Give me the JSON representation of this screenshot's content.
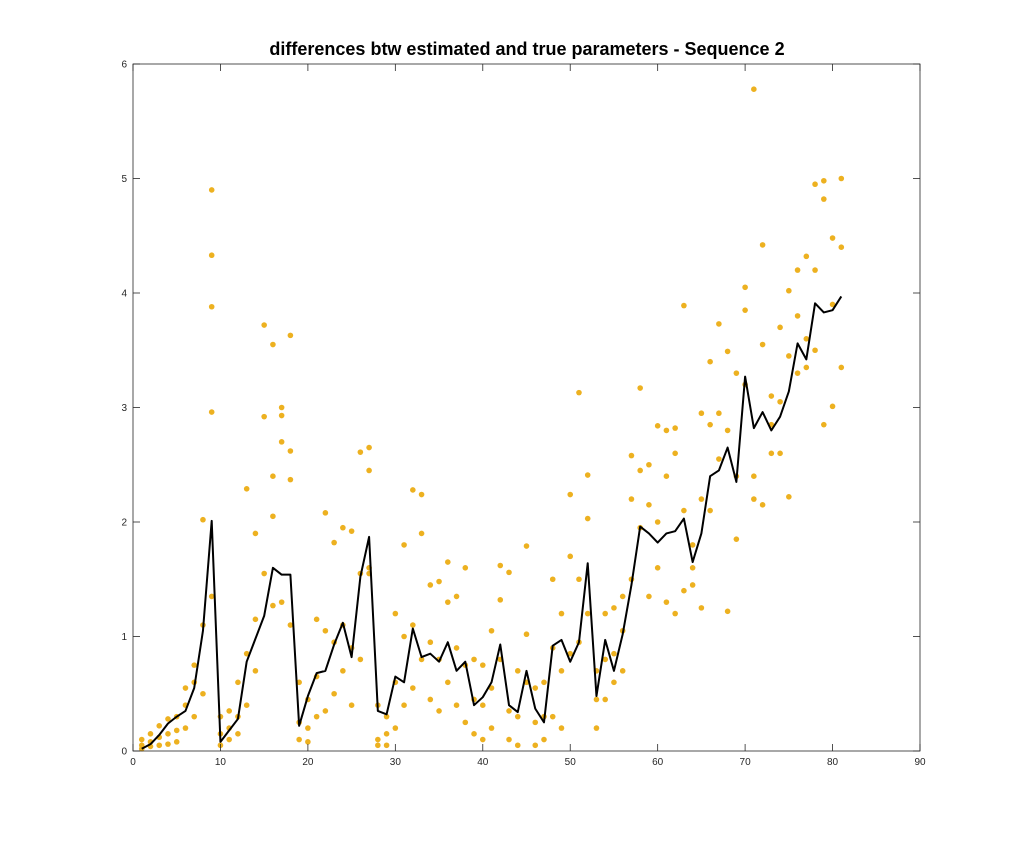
{
  "chart_data": {
    "type": "scatter",
    "title": "differences btw estimated and true parameters - Sequence 2",
    "xlabel": "",
    "ylabel": "",
    "xlim": [
      0,
      90
    ],
    "ylim": [
      0,
      6
    ],
    "xticks": [
      0,
      10,
      20,
      30,
      40,
      50,
      60,
      70,
      80,
      90
    ],
    "yticks": [
      0,
      1,
      2,
      3,
      4,
      5,
      6
    ],
    "grid": false,
    "box": true,
    "colors": {
      "scatter": "#EDB120",
      "line": "#000000",
      "axes": "#262626"
    },
    "series": [
      {
        "type": "scatter",
        "points": [
          [
            1,
            0.1
          ],
          [
            1,
            0.05
          ],
          [
            1,
            0.02
          ],
          [
            2,
            0.15
          ],
          [
            2,
            0.08
          ],
          [
            2,
            0.04
          ],
          [
            3,
            0.22
          ],
          [
            3,
            0.12
          ],
          [
            3,
            0.05
          ],
          [
            4,
            0.28
          ],
          [
            4,
            0.15
          ],
          [
            4,
            0.06
          ],
          [
            5,
            0.3
          ],
          [
            5,
            0.18
          ],
          [
            5,
            0.08
          ],
          [
            6,
            0.4
          ],
          [
            6,
            0.55
          ],
          [
            6,
            0.2
          ],
          [
            7,
            0.6
          ],
          [
            7,
            0.75
          ],
          [
            7,
            0.3
          ],
          [
            8,
            1.1
          ],
          [
            8,
            2.02
          ],
          [
            8,
            0.5
          ],
          [
            9,
            4.9
          ],
          [
            9,
            4.33
          ],
          [
            9,
            3.88
          ],
          [
            9,
            2.96
          ],
          [
            9,
            1.35
          ],
          [
            10,
            0.15
          ],
          [
            10,
            0.05
          ],
          [
            10,
            0.3
          ],
          [
            11,
            0.2
          ],
          [
            11,
            0.35
          ],
          [
            11,
            0.1
          ],
          [
            12,
            0.3
          ],
          [
            12,
            0.6
          ],
          [
            12,
            0.15
          ],
          [
            13,
            2.29
          ],
          [
            13,
            0.85
          ],
          [
            13,
            0.4
          ],
          [
            14,
            1.9
          ],
          [
            14,
            1.15
          ],
          [
            14,
            0.7
          ],
          [
            15,
            3.72
          ],
          [
            15,
            2.92
          ],
          [
            15,
            1.55
          ],
          [
            16,
            3.55
          ],
          [
            16,
            2.4
          ],
          [
            16,
            2.05
          ],
          [
            16,
            1.27
          ],
          [
            17,
            3.0
          ],
          [
            17,
            2.93
          ],
          [
            17,
            2.7
          ],
          [
            17,
            1.3
          ],
          [
            18,
            3.63
          ],
          [
            18,
            2.62
          ],
          [
            18,
            2.37
          ],
          [
            18,
            1.1
          ],
          [
            19,
            0.6
          ],
          [
            19,
            0.25
          ],
          [
            19,
            0.1
          ],
          [
            20,
            0.45
          ],
          [
            20,
            0.2
          ],
          [
            20,
            0.08
          ],
          [
            21,
            1.15
          ],
          [
            21,
            0.65
          ],
          [
            21,
            0.3
          ],
          [
            22,
            2.08
          ],
          [
            22,
            1.05
          ],
          [
            22,
            0.35
          ],
          [
            23,
            1.82
          ],
          [
            23,
            0.95
          ],
          [
            23,
            0.5
          ],
          [
            24,
            1.95
          ],
          [
            24,
            1.1
          ],
          [
            24,
            0.7
          ],
          [
            25,
            1.92
          ],
          [
            25,
            0.9
          ],
          [
            25,
            0.4
          ],
          [
            26,
            2.61
          ],
          [
            26,
            1.55
          ],
          [
            26,
            0.8
          ],
          [
            27,
            2.65
          ],
          [
            27,
            2.45
          ],
          [
            27,
            1.6
          ],
          [
            27,
            1.55
          ],
          [
            28,
            0.4
          ],
          [
            28,
            0.1
          ],
          [
            28,
            0.05
          ],
          [
            29,
            0.3
          ],
          [
            29,
            0.15
          ],
          [
            29,
            0.05
          ],
          [
            30,
            1.2
          ],
          [
            30,
            0.6
          ],
          [
            30,
            0.2
          ],
          [
            31,
            1.8
          ],
          [
            31,
            1.0
          ],
          [
            31,
            0.4
          ],
          [
            32,
            2.28
          ],
          [
            32,
            1.1
          ],
          [
            32,
            0.55
          ],
          [
            33,
            2.24
          ],
          [
            33,
            1.9
          ],
          [
            33,
            0.8
          ],
          [
            34,
            1.45
          ],
          [
            34,
            0.95
          ],
          [
            34,
            0.45
          ],
          [
            35,
            1.48
          ],
          [
            35,
            0.8
          ],
          [
            35,
            0.35
          ],
          [
            36,
            1.65
          ],
          [
            36,
            1.3
          ],
          [
            36,
            0.6
          ],
          [
            37,
            1.35
          ],
          [
            37,
            0.9
          ],
          [
            37,
            0.4
          ],
          [
            38,
            1.6
          ],
          [
            38,
            0.75
          ],
          [
            38,
            0.25
          ],
          [
            39,
            0.8
          ],
          [
            39,
            0.45
          ],
          [
            39,
            0.15
          ],
          [
            40,
            0.75
          ],
          [
            40,
            0.4
          ],
          [
            40,
            0.1
          ],
          [
            41,
            1.05
          ],
          [
            41,
            0.55
          ],
          [
            41,
            0.2
          ],
          [
            42,
            1.62
          ],
          [
            42,
            1.32
          ],
          [
            42,
            0.8
          ],
          [
            43,
            1.56
          ],
          [
            43,
            0.35
          ],
          [
            43,
            0.1
          ],
          [
            44,
            0.7
          ],
          [
            44,
            0.3
          ],
          [
            44,
            0.05
          ],
          [
            45,
            1.79
          ],
          [
            45,
            1.02
          ],
          [
            45,
            0.6
          ],
          [
            46,
            0.55
          ],
          [
            46,
            0.25
          ],
          [
            46,
            0.05
          ],
          [
            47,
            0.6
          ],
          [
            47,
            0.3
          ],
          [
            47,
            0.1
          ],
          [
            48,
            1.5
          ],
          [
            48,
            0.9
          ],
          [
            48,
            0.3
          ],
          [
            49,
            1.2
          ],
          [
            49,
            0.7
          ],
          [
            49,
            0.2
          ],
          [
            50,
            2.24
          ],
          [
            50,
            1.7
          ],
          [
            50,
            0.85
          ],
          [
            51,
            3.13
          ],
          [
            51,
            1.5
          ],
          [
            51,
            0.95
          ],
          [
            52,
            2.41
          ],
          [
            52,
            2.03
          ],
          [
            52,
            1.2
          ],
          [
            53,
            0.7
          ],
          [
            53,
            0.45
          ],
          [
            53,
            0.2
          ],
          [
            54,
            1.2
          ],
          [
            54,
            0.8
          ],
          [
            54,
            0.45
          ],
          [
            55,
            1.25
          ],
          [
            55,
            0.85
          ],
          [
            55,
            0.6
          ],
          [
            56,
            1.35
          ],
          [
            56,
            1.05
          ],
          [
            56,
            0.7
          ],
          [
            57,
            2.58
          ],
          [
            57,
            2.2
          ],
          [
            57,
            1.5
          ],
          [
            58,
            3.17
          ],
          [
            58,
            2.45
          ],
          [
            58,
            1.95
          ],
          [
            59,
            2.5
          ],
          [
            59,
            2.15
          ],
          [
            59,
            1.35
          ],
          [
            60,
            2.84
          ],
          [
            60,
            2.0
          ],
          [
            60,
            1.6
          ],
          [
            61,
            2.8
          ],
          [
            61,
            2.4
          ],
          [
            61,
            1.3
          ],
          [
            62,
            2.82
          ],
          [
            62,
            2.6
          ],
          [
            62,
            1.2
          ],
          [
            63,
            3.89
          ],
          [
            63,
            2.1
          ],
          [
            63,
            1.4
          ],
          [
            64,
            1.8
          ],
          [
            64,
            1.6
          ],
          [
            64,
            1.45
          ],
          [
            65,
            2.95
          ],
          [
            65,
            2.2
          ],
          [
            65,
            1.25
          ],
          [
            66,
            3.4
          ],
          [
            66,
            2.85
          ],
          [
            66,
            2.1
          ],
          [
            67,
            3.73
          ],
          [
            67,
            2.95
          ],
          [
            67,
            2.55
          ],
          [
            68,
            3.49
          ],
          [
            68,
            2.8
          ],
          [
            68,
            1.22
          ],
          [
            69,
            3.3
          ],
          [
            69,
            2.4
          ],
          [
            69,
            1.85
          ],
          [
            70,
            4.05
          ],
          [
            70,
            3.85
          ],
          [
            70,
            3.2
          ],
          [
            71,
            5.78
          ],
          [
            71,
            2.4
          ],
          [
            71,
            2.2
          ],
          [
            72,
            4.42
          ],
          [
            72,
            3.55
          ],
          [
            72,
            2.15
          ],
          [
            73,
            3.1
          ],
          [
            73,
            2.85
          ],
          [
            73,
            2.6
          ],
          [
            74,
            3.7
          ],
          [
            74,
            3.05
          ],
          [
            74,
            2.6
          ],
          [
            75,
            4.02
          ],
          [
            75,
            3.45
          ],
          [
            75,
            2.22
          ],
          [
            76,
            4.2
          ],
          [
            76,
            3.8
          ],
          [
            76,
            3.3
          ],
          [
            77,
            4.32
          ],
          [
            77,
            3.6
          ],
          [
            77,
            3.35
          ],
          [
            78,
            4.95
          ],
          [
            78,
            4.2
          ],
          [
            78,
            3.5
          ],
          [
            79,
            4.98
          ],
          [
            79,
            4.82
          ],
          [
            79,
            2.85
          ],
          [
            80,
            4.48
          ],
          [
            80,
            3.9
          ],
          [
            80,
            3.01
          ],
          [
            81,
            5.0
          ],
          [
            81,
            4.4
          ],
          [
            81,
            3.35
          ]
        ]
      },
      {
        "type": "line",
        "x": [
          1,
          2,
          3,
          4,
          5,
          6,
          7,
          8,
          9,
          10,
          11,
          12,
          13,
          14,
          15,
          16,
          17,
          18,
          19,
          20,
          21,
          22,
          23,
          24,
          25,
          26,
          27,
          28,
          29,
          30,
          31,
          32,
          33,
          34,
          35,
          36,
          37,
          38,
          39,
          40,
          41,
          42,
          43,
          44,
          45,
          46,
          47,
          48,
          49,
          50,
          51,
          52,
          53,
          54,
          55,
          56,
          57,
          58,
          59,
          60,
          61,
          62,
          63,
          64,
          65,
          66,
          67,
          68,
          69,
          70,
          71,
          72,
          73,
          74,
          75,
          76,
          77,
          78,
          79,
          80,
          81
        ],
        "y": [
          0.02,
          0.06,
          0.14,
          0.24,
          0.3,
          0.35,
          0.55,
          1.05,
          2.01,
          0.08,
          0.18,
          0.28,
          0.78,
          0.98,
          1.18,
          1.6,
          1.54,
          1.54,
          0.22,
          0.48,
          0.68,
          0.7,
          0.93,
          1.12,
          0.82,
          1.52,
          1.87,
          0.35,
          0.32,
          0.65,
          0.6,
          1.07,
          0.82,
          0.85,
          0.78,
          0.95,
          0.7,
          0.78,
          0.4,
          0.47,
          0.6,
          0.93,
          0.4,
          0.34,
          0.7,
          0.37,
          0.25,
          0.92,
          0.97,
          0.78,
          0.95,
          1.64,
          0.48,
          0.97,
          0.7,
          1.02,
          1.45,
          1.96,
          1.9,
          1.82,
          1.9,
          1.92,
          2.03,
          1.65,
          1.9,
          2.4,
          2.45,
          2.65,
          2.35,
          3.27,
          2.82,
          2.96,
          2.8,
          2.92,
          3.14,
          3.56,
          3.42,
          3.91,
          3.83,
          3.85,
          3.97
        ]
      }
    ]
  }
}
